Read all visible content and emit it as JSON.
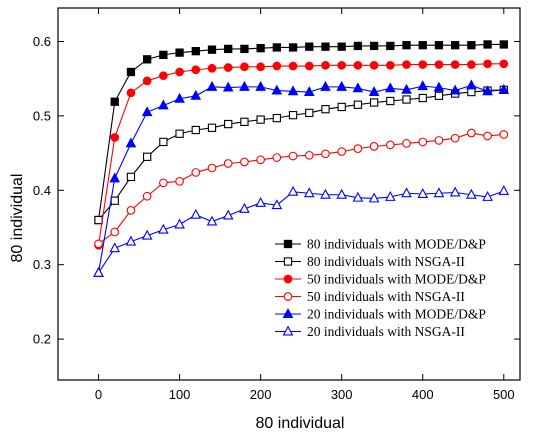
{
  "chart_data": {
    "type": "line",
    "xlabel": "80 individual",
    "ylabel": "80 individual",
    "xlim": [
      -50,
      520
    ],
    "ylim": [
      0.145,
      0.645
    ],
    "xticks": [
      0,
      100,
      200,
      300,
      400,
      500
    ],
    "yticks": [
      0.2,
      0.3,
      0.4,
      0.5,
      0.6
    ],
    "ytick_labels": [
      "0.2",
      "0.3",
      "0.4",
      "0.5",
      "0.6"
    ],
    "legend_position": "bottom-right",
    "grid": false,
    "x": [
      0,
      20,
      40,
      60,
      80,
      100,
      120,
      140,
      160,
      180,
      200,
      220,
      240,
      260,
      280,
      300,
      320,
      340,
      360,
      380,
      400,
      420,
      440,
      460,
      480,
      500
    ],
    "series": [
      {
        "name": "80 individuals with MODE/D&P",
        "color": "#000000",
        "marker": "square",
        "filled": true,
        "values": [
          0.36,
          0.519,
          0.559,
          0.576,
          0.582,
          0.585,
          0.587,
          0.589,
          0.59,
          0.59,
          0.591,
          0.592,
          0.592,
          0.593,
          0.593,
          0.593,
          0.594,
          0.594,
          0.594,
          0.595,
          0.595,
          0.595,
          0.595,
          0.595,
          0.596,
          0.596
        ]
      },
      {
        "name": "80 individuals with NSGA-II",
        "color": "#000000",
        "marker": "square",
        "filled": false,
        "values": [
          0.36,
          0.386,
          0.418,
          0.445,
          0.465,
          0.476,
          0.481,
          0.484,
          0.489,
          0.492,
          0.495,
          0.497,
          0.501,
          0.504,
          0.509,
          0.512,
          0.515,
          0.518,
          0.52,
          0.522,
          0.524,
          0.527,
          0.53,
          0.532,
          0.534,
          0.535
        ]
      },
      {
        "name": "50 individuals with MODE/D&P",
        "color": "#ff0000",
        "marker": "circle",
        "filled": true,
        "values": [
          0.326,
          0.471,
          0.531,
          0.547,
          0.554,
          0.559,
          0.562,
          0.564,
          0.565,
          0.566,
          0.566,
          0.567,
          0.567,
          0.567,
          0.568,
          0.568,
          0.568,
          0.568,
          0.568,
          0.569,
          0.569,
          0.569,
          0.569,
          0.569,
          0.57,
          0.57
        ]
      },
      {
        "name": "50 individuals with NSGA-II",
        "color": "#ff0000",
        "marker": "circle",
        "filled": false,
        "values": [
          0.328,
          0.344,
          0.373,
          0.392,
          0.41,
          0.412,
          0.424,
          0.43,
          0.436,
          0.438,
          0.441,
          0.444,
          0.446,
          0.447,
          0.449,
          0.452,
          0.456,
          0.459,
          0.461,
          0.463,
          0.465,
          0.467,
          0.47,
          0.477,
          0.473,
          0.475
        ]
      },
      {
        "name": "20 individuals with MODE/D&P",
        "color": "#0000ff",
        "marker": "triangle",
        "filled": true,
        "values": [
          0.289,
          0.416,
          0.463,
          0.505,
          0.514,
          0.523,
          0.527,
          0.539,
          0.538,
          0.539,
          0.539,
          0.534,
          0.533,
          0.532,
          0.539,
          0.539,
          0.537,
          0.532,
          0.537,
          0.535,
          0.54,
          0.538,
          0.534,
          0.541,
          0.533,
          0.535
        ]
      },
      {
        "name": "20 individuals with NSGA-II",
        "color": "#0000ff",
        "marker": "triangle",
        "filled": false,
        "values": [
          0.289,
          0.322,
          0.331,
          0.339,
          0.347,
          0.354,
          0.367,
          0.358,
          0.366,
          0.375,
          0.383,
          0.38,
          0.398,
          0.396,
          0.394,
          0.394,
          0.39,
          0.389,
          0.391,
          0.396,
          0.395,
          0.396,
          0.397,
          0.394,
          0.391,
          0.399
        ]
      }
    ]
  }
}
